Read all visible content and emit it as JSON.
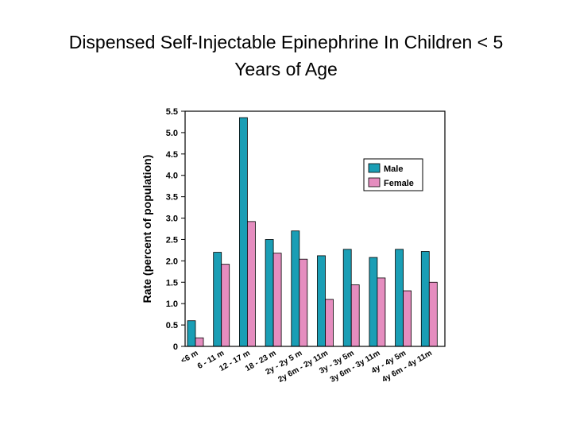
{
  "slide": {
    "title_line1": "Dispensed Self-Injectable Epinephrine In Children < 5",
    "title_line2": "Years of Age"
  },
  "chart_data": {
    "type": "bar",
    "title": "Dispensed Self-Injectable Epinephrine In Children < 5 Years of Age",
    "xlabel": "",
    "ylabel": "Rate (percent of population)",
    "ylim": [
      0,
      5.5
    ],
    "yticks": [
      "0",
      "0.5",
      "1.0",
      "1.5",
      "2.0",
      "2.5",
      "3.0",
      "3.5",
      "4.0",
      "4.5",
      "5.0",
      "5.5"
    ],
    "categories": [
      "<6 m",
      "6 - 11 m",
      "12 - 17 m",
      "18 - 23 m",
      "2y - 2y 5 m",
      "2y 6m - 2y 11m",
      "3y - 3y 5m",
      "3y 6m - 3y 11m",
      "4y - 4y 5m",
      "4y 6m - 4y 11m"
    ],
    "series": [
      {
        "name": "Male",
        "color": "#1a9eb5",
        "values": [
          0.6,
          2.2,
          5.35,
          2.5,
          2.7,
          2.12,
          2.27,
          2.08,
          2.27,
          2.22
        ]
      },
      {
        "name": "Female",
        "color": "#e58dbf",
        "values": [
          0.2,
          1.92,
          2.92,
          2.18,
          2.04,
          1.1,
          1.44,
          1.6,
          1.3,
          1.5
        ]
      }
    ],
    "legend_position": "top-right",
    "grid": false
  }
}
